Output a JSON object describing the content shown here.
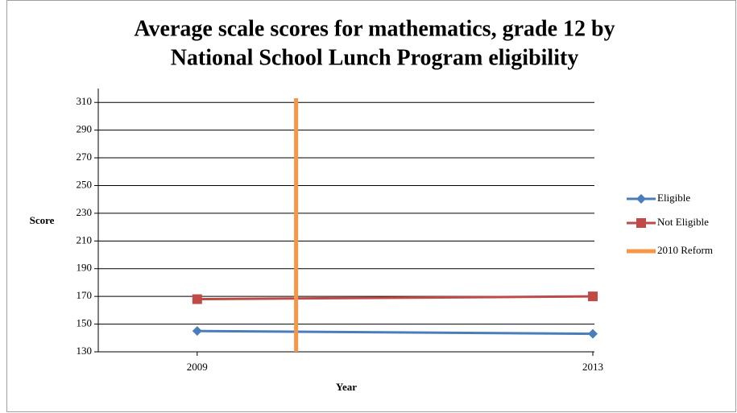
{
  "chart_data": {
    "type": "line",
    "title": [
      "Average scale scores for mathematics, grade 12 by",
      "National School Lunch Program eligibility"
    ],
    "x_label": "Year",
    "y_label": "Score",
    "xlim": [
      2008,
      2013
    ],
    "xticks": [
      2009,
      2013
    ],
    "ylim": [
      130,
      320
    ],
    "yticks": [
      130,
      150,
      170,
      190,
      210,
      230,
      250,
      270,
      290,
      310
    ],
    "grid": true,
    "legend": "right",
    "series": [
      {
        "name": "Eligible",
        "color": "#4a7ebb",
        "marker": "diamond",
        "x": [
          2009,
          2013
        ],
        "values": [
          145,
          143
        ]
      },
      {
        "name": "Not Eligible",
        "color": "#be4b48",
        "marker": "square",
        "x": [
          2009,
          2013
        ],
        "values": [
          168,
          170
        ]
      },
      {
        "name": "2010  Reform",
        "color": "#f79646",
        "marker": "none",
        "x": [
          2010,
          2010
        ],
        "values": [
          130,
          313
        ]
      }
    ]
  }
}
